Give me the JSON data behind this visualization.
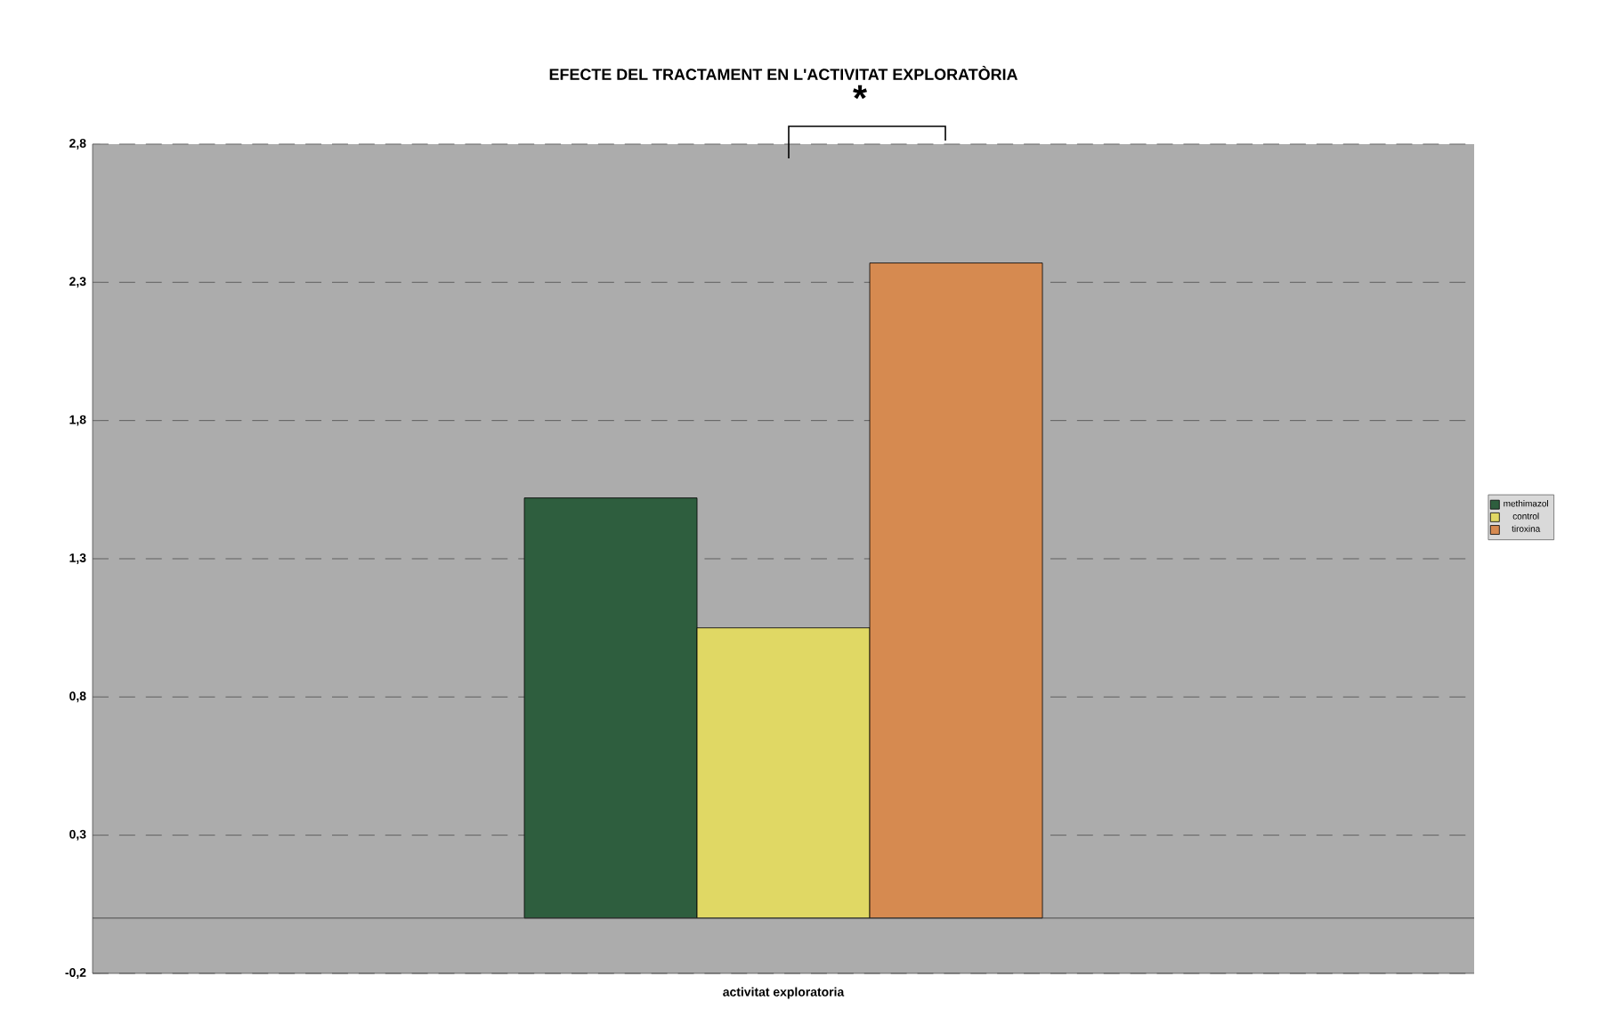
{
  "chart_data": {
    "type": "bar",
    "title": "EFECTE DEL TRACTAMENT EN L'ACTIVITAT EXPLORATÒRIA",
    "categories": [
      "activitat exploratoria"
    ],
    "series": [
      {
        "name": "methimazol",
        "color": "#2e5e3e",
        "values": [
          1.52
        ]
      },
      {
        "name": "control",
        "color": "#e0d864",
        "values": [
          1.05
        ]
      },
      {
        "name": "tiroxina",
        "color": "#d68a50",
        "values": [
          2.37
        ]
      }
    ],
    "ylim": [
      -0.2,
      2.8
    ],
    "yticks": [
      {
        "value": -0.2,
        "label": "-0,2"
      },
      {
        "value": 0.3,
        "label": "0,3"
      },
      {
        "value": 0.8,
        "label": "0,8"
      },
      {
        "value": 1.3,
        "label": "1,3"
      },
      {
        "value": 1.8,
        "label": "1,8"
      },
      {
        "value": 2.3,
        "label": "2,3"
      },
      {
        "value": 2.8,
        "label": "2,8"
      }
    ],
    "grid": "y",
    "legend": "right",
    "annotations": [
      "*"
    ]
  }
}
